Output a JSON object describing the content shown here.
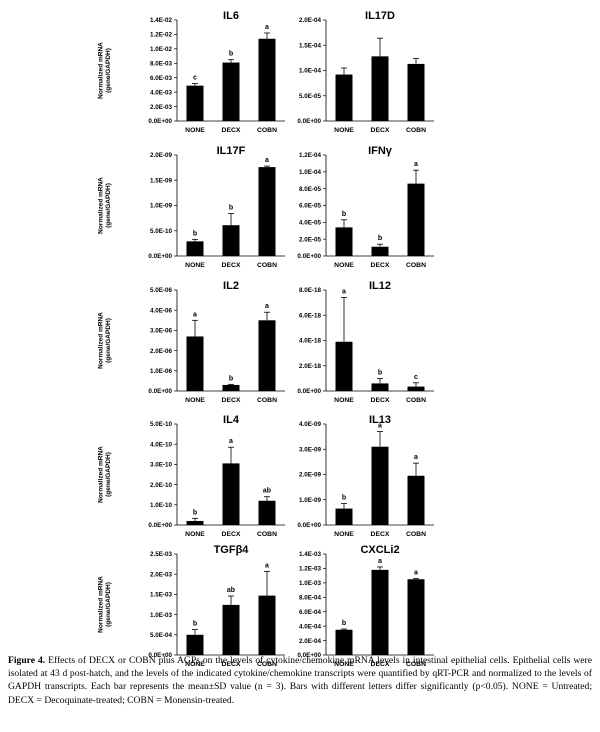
{
  "y_axis_label": [
    "Normalized mRNA",
    "(gene/GAPDH)"
  ],
  "categories": [
    "NONE",
    "DECX",
    "COBN"
  ],
  "chart_data": [
    {
      "type": "bar",
      "title": "IL6",
      "categories": [
        "NONE",
        "DECX",
        "COBN"
      ],
      "yticks": [
        "0.0E+00",
        "2.0E-03",
        "4.0E-03",
        "6.0E-03",
        "8.0E-03",
        "1.0E-02",
        "1.2E-02",
        "1.4E-02"
      ],
      "ylim": [
        0,
        0.014
      ],
      "values": [
        0.0049,
        0.0081,
        0.0114
      ],
      "errors": [
        0.0003,
        0.0004,
        0.0008
      ],
      "letters": [
        "c",
        "b",
        "a"
      ],
      "show_y_label": true
    },
    {
      "type": "bar",
      "title": "IL17D",
      "categories": [
        "NONE",
        "DECX",
        "COBN"
      ],
      "yticks": [
        "0.0E+00",
        "5.0E-05",
        "1.0E-04",
        "1.5E-04",
        "2.0E-04"
      ],
      "ylim": [
        0,
        0.0002
      ],
      "values": [
        9.2e-05,
        0.000128,
        0.000113
      ],
      "errors": [
        1.3e-05,
        3.6e-05,
        1.1e-05
      ],
      "letters": [
        "",
        "",
        ""
      ],
      "show_y_label": false
    },
    {
      "type": "bar",
      "title": "IL17F",
      "categories": [
        "NONE",
        "DECX",
        "COBN"
      ],
      "yticks": [
        "0.0E+00",
        "5.0E-10",
        "1.0E-09",
        "1.5E-09",
        "2.0E-09"
      ],
      "ylim": [
        0,
        2e-09
      ],
      "values": [
        2.9e-10,
        6.1e-10,
        1.76e-09
      ],
      "errors": [
        4e-11,
        2.3e-10,
        2e-11
      ],
      "letters": [
        "b",
        "b",
        "a"
      ],
      "show_y_label": true
    },
    {
      "type": "bar",
      "title": "IFNγ",
      "categories": [
        "NONE",
        "DECX",
        "COBN"
      ],
      "yticks": [
        "0.0E+00",
        "2.0E-05",
        "4.0E-05",
        "6.0E-05",
        "8.0E-05",
        "1.0E-04",
        "1.2E-04"
      ],
      "ylim": [
        0,
        0.00012
      ],
      "values": [
        3.4e-05,
        1.1e-05,
        8.6e-05
      ],
      "errors": [
        9e-06,
        3e-06,
        1.6e-05
      ],
      "letters": [
        "b",
        "b",
        "a"
      ],
      "show_y_label": false
    },
    {
      "type": "bar",
      "title": "IL2",
      "categories": [
        "NONE",
        "DECX",
        "COBN"
      ],
      "yticks": [
        "0.0E+00",
        "1.0E-06",
        "2.0E-06",
        "3.0E-06",
        "4.0E-06",
        "5.0E-06"
      ],
      "ylim": [
        0,
        5e-06
      ],
      "values": [
        2.7e-06,
        3e-07,
        3.5e-06
      ],
      "errors": [
        8e-07,
        3e-08,
        4e-07
      ],
      "letters": [
        "a",
        "b",
        "a"
      ],
      "show_y_label": true
    },
    {
      "type": "bar",
      "title": "IL12",
      "categories": [
        "NONE",
        "DECX",
        "COBN"
      ],
      "yticks": [
        "0.0E+00",
        "2.0E-18",
        "4.0E-18",
        "6.0E-18",
        "8.0E-18"
      ],
      "ylim": [
        0,
        8e-18
      ],
      "values": [
        3.9e-18,
        6e-19,
        3.5e-19
      ],
      "errors": [
        3.5e-18,
        4e-19,
        3e-19
      ],
      "letters": [
        "a",
        "b",
        "c"
      ],
      "show_y_label": false
    },
    {
      "type": "bar",
      "title": "IL4",
      "categories": [
        "NONE",
        "DECX",
        "COBN"
      ],
      "yticks": [
        "0.0E+00",
        "1.0E-10",
        "2.0E-10",
        "3.0E-10",
        "4.0E-10",
        "5.0E-10"
      ],
      "ylim": [
        0,
        5e-10
      ],
      "values": [
        2e-11,
        3.05e-10,
        1.2e-10
      ],
      "errors": [
        1.3e-11,
        8e-11,
        2e-11
      ],
      "letters": [
        "b",
        "a",
        "ab"
      ],
      "show_y_label": true
    },
    {
      "type": "bar",
      "title": "IL13",
      "categories": [
        "NONE",
        "DECX",
        "COBN"
      ],
      "yticks": [
        "0.0E+00",
        "1.0E-09",
        "2.0E-09",
        "3.0E-09",
        "4.0E-09"
      ],
      "ylim": [
        0,
        4e-09
      ],
      "values": [
        6.5e-10,
        3.1e-09,
        1.95e-09
      ],
      "errors": [
        2e-10,
        6e-10,
        5e-10
      ],
      "letters": [
        "b",
        "a",
        "a"
      ],
      "show_y_label": false
    },
    {
      "type": "bar",
      "title": "TGFβ4",
      "categories": [
        "NONE",
        "DECX",
        "COBN"
      ],
      "yticks": [
        "0.0E+00",
        "5.0E-04",
        "1.0E-03",
        "1.5E-03",
        "2.0E-03",
        "2.5E-03"
      ],
      "ylim": [
        0,
        0.0025
      ],
      "values": [
        0.0005,
        0.00124,
        0.00147
      ],
      "errors": [
        0.00013,
        0.00022,
        0.0006
      ],
      "letters": [
        "b",
        "ab",
        "a"
      ],
      "show_y_label": true
    },
    {
      "type": "bar",
      "title": "CXCLi2",
      "categories": [
        "NONE",
        "DECX",
        "COBN"
      ],
      "yticks": [
        "0.0E+00",
        "2.0E-04",
        "4.0E-04",
        "6.0E-04",
        "8.0E-04",
        "1.0E-03",
        "1.2E-03",
        "1.4E-03"
      ],
      "ylim": [
        0,
        0.0014
      ],
      "values": [
        0.00035,
        0.00118,
        0.00105
      ],
      "errors": [
        1e-05,
        4e-05,
        1e-05
      ],
      "letters": [
        "b",
        "a",
        "a"
      ],
      "show_y_label": false
    }
  ],
  "caption": {
    "label": "Figure 4.",
    "text": " Effects of DECX or COBN plus AGPs on the levels of cytokine/chemokine mRNA levels in intestinal epithelial cells. Epithelial cells were isolated at 43 d post-hatch, and the levels of the indicated cytokine/chemokine transcripts were quantified by qRT-PCR and normalized to the levels of GAPDH transcripts. Each bar represents the mean±SD value (n = 3). Bars with different letters differ significantly (p<0.05). NONE = Untreated; DECX = Decoquinate-treated; COBN = Monensin-treated."
  }
}
